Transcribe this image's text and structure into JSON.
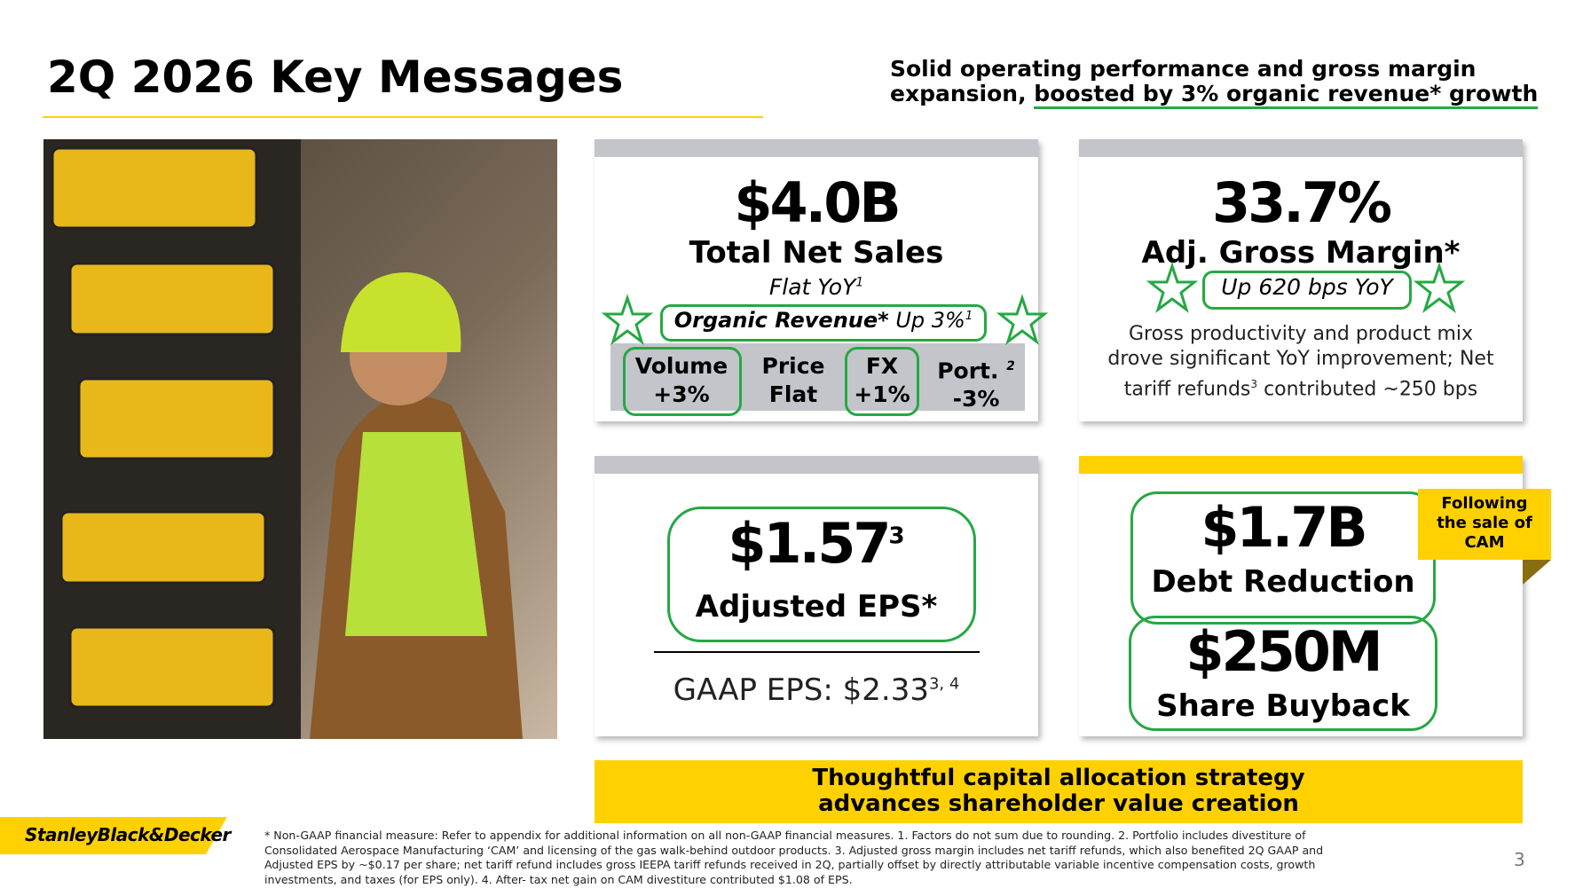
{
  "header": {
    "title": "2Q 2026 Key Messages",
    "subtitle_line1": "Solid operating performance and gross margin",
    "subtitle_line2": "expansion,",
    "subtitle_highlight": "boosted by 3% organic revenue* growth"
  },
  "sales_card": {
    "value": "$4.0B",
    "label": "Total Net Sales",
    "note": "Flat YoY",
    "note_sup": "1",
    "organic_bold": "Organic Revenue*",
    "organic_rest": "Up 3%",
    "organic_sup": "1",
    "components": [
      {
        "name": "Volume",
        "value": "+3%"
      },
      {
        "name": "Price",
        "value": "Flat"
      },
      {
        "name": "FX",
        "value": "+1%"
      },
      {
        "name": "Port.",
        "sup": "2",
        "value": "-3%"
      }
    ]
  },
  "margin_card": {
    "value": "33.7%",
    "label": "Adj. Gross Margin*",
    "note": "Up 620 bps YoY",
    "text_line1": "Gross productivity and product mix",
    "text_line2": "drove significant YoY improvement; Net",
    "text_line3a": "tariff refunds",
    "text_line3_sup": "3",
    "text_line3b": " contributed ~250 bps"
  },
  "eps_card": {
    "value": "$1.57",
    "value_sup": "3",
    "label": "Adjusted EPS*",
    "gaap": "GAAP EPS: $2.33",
    "gaap_sup": "3, 4"
  },
  "capital_card": {
    "debt_value": "$1.7B",
    "debt_label": "Debt Reduction",
    "buyback_value": "$250M",
    "buyback_label": "Share Buyback",
    "badge": [
      "Following",
      "the sale of",
      "CAM"
    ]
  },
  "banner": [
    "Thoughtful capital allocation strategy",
    "advances shareholder value creation"
  ],
  "logo": "StanleyBlack&Decker",
  "footnotes": [
    "*  Non-GAAP financial measure: Refer to appendix for additional information on all non-GAAP financial measures.  1. Factors do not sum due to rounding.  2. Portfolio includes divestiture of",
    "Consolidated Aerospace Manufacturing ‘CAM’ and licensing of the gas walk-behind outdoor products.  3. Adjusted gross margin includes net tariff refunds, which also benefited 2Q GAAP and",
    "Adjusted EPS by ~$0.17 per share; net tariff refund includes gross IEEPA tariff refunds received in 2Q, partially offset by directly attributable variable incentive compensation costs, growth",
    "investments, and taxes (for EPS only).  4. After- tax net gain on CAM divestiture contributed $1.08 of EPS."
  ],
  "page_number": "3"
}
